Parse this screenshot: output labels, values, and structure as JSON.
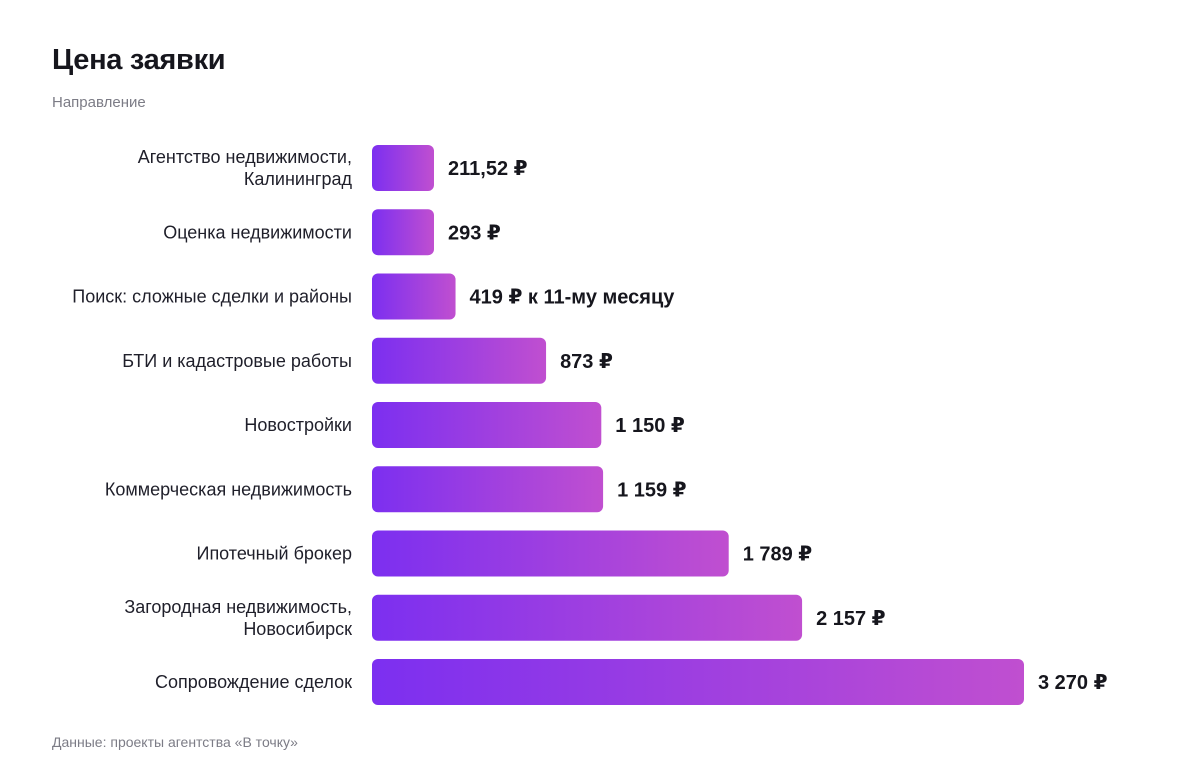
{
  "header": {
    "title": "Цена заявки",
    "subtitle": "Направление"
  },
  "footer": {
    "source": "Данные: проекты агентства «В точку»"
  },
  "colors": {
    "bar_start": "#7c2ff0",
    "bar_end": "#c04fd0"
  },
  "chart_data": {
    "type": "bar",
    "orientation": "horizontal",
    "categories": [
      [
        "Агентство недвижимости,",
        "Калининград"
      ],
      [
        "Оценка недвижимости"
      ],
      [
        "Поиск: сложные сделки и районы"
      ],
      [
        "БТИ и кадастровые работы"
      ],
      [
        "Новостройки"
      ],
      [
        "Коммерческая недвижимость"
      ],
      [
        "Ипотечный брокер"
      ],
      [
        "Загородная недвижимость,",
        "Новосибирск"
      ],
      [
        "Сопровождение сделок"
      ]
    ],
    "values": [
      211.52,
      293,
      419,
      873,
      1150,
      1159,
      1789,
      2157,
      3270
    ],
    "value_labels": [
      "211,52 ₽",
      "293 ₽",
      "419 ₽ к 11-му месяцу",
      "873 ₽",
      "1 150 ₽",
      "1 159 ₽",
      "1 789 ₽",
      "2 157 ₽",
      "3 270 ₽"
    ],
    "xlim": [
      0,
      3270
    ],
    "grid": false,
    "legend": false
  }
}
